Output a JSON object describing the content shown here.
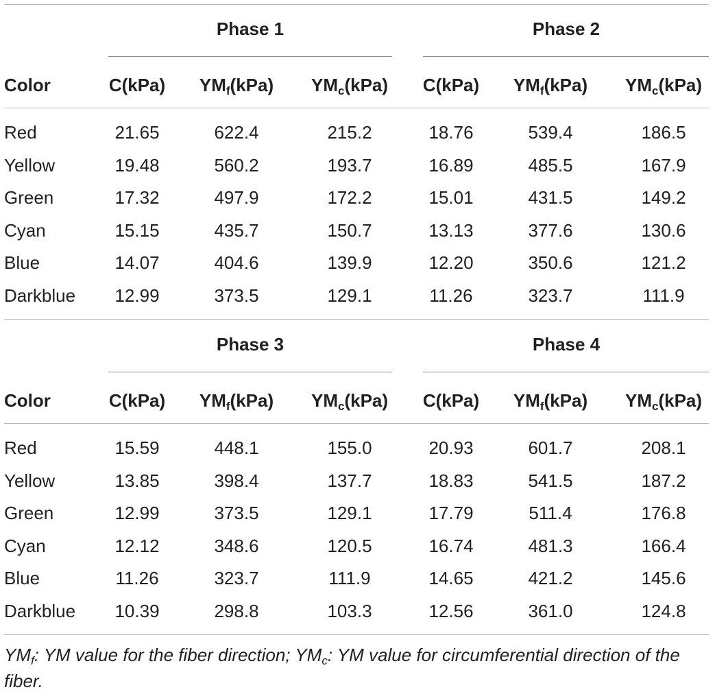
{
  "blocks": [
    {
      "phases": [
        "Phase 1",
        "Phase 2"
      ],
      "headers": {
        "color": "Color",
        "c": "C(kPa)",
        "ymf_main": "YM",
        "ymf_sub": "f",
        "ymf_unit": "(kPa)",
        "ymc_main": "YM",
        "ymc_sub": "c",
        "ymc_unit": "(kPa)"
      },
      "rows": [
        [
          "Red",
          "21.65",
          "622.4",
          "215.2",
          "18.76",
          "539.4",
          "186.5"
        ],
        [
          "Yellow",
          "19.48",
          "560.2",
          "193.7",
          "16.89",
          "485.5",
          "167.9"
        ],
        [
          "Green",
          "17.32",
          "497.9",
          "172.2",
          "15.01",
          "431.5",
          "149.2"
        ],
        [
          "Cyan",
          "15.15",
          "435.7",
          "150.7",
          "13.13",
          "377.6",
          "130.6"
        ],
        [
          "Blue",
          "14.07",
          "404.6",
          "139.9",
          "12.20",
          "350.6",
          "121.2"
        ],
        [
          "Darkblue",
          "12.99",
          "373.5",
          "129.1",
          "11.26",
          "323.7",
          "111.9"
        ]
      ]
    },
    {
      "phases": [
        "Phase 3",
        "Phase 4"
      ],
      "headers": {
        "color": "Color",
        "c": "C(kPa)",
        "ymf_main": "YM",
        "ymf_sub": "f",
        "ymf_unit": "(kPa)",
        "ymc_main": "YM",
        "ymc_sub": "c",
        "ymc_unit": "(kPa)"
      },
      "rows": [
        [
          "Red",
          "15.59",
          "448.1",
          "155.0",
          "20.93",
          "601.7",
          "208.1"
        ],
        [
          "Yellow",
          "13.85",
          "398.4",
          "137.7",
          "18.83",
          "541.5",
          "187.2"
        ],
        [
          "Green",
          "12.99",
          "373.5",
          "129.1",
          "17.79",
          "511.4",
          "176.8"
        ],
        [
          "Cyan",
          "12.12",
          "348.6",
          "120.5",
          "16.74",
          "481.3",
          "166.4"
        ],
        [
          "Blue",
          "11.26",
          "323.7",
          "111.9",
          "14.65",
          "421.2",
          "145.6"
        ],
        [
          "Darkblue",
          "10.39",
          "298.8",
          "103.3",
          "12.56",
          "361.0",
          "124.8"
        ]
      ]
    }
  ],
  "footnote": {
    "ymf_main": "YM",
    "ymf_sub": "f",
    "ymf_text": ": YM value for the fiber direction; ",
    "ymc_main": "YM",
    "ymc_sub": "c",
    "ymc_text": ": YM value for circumferential direction of the fiber."
  }
}
